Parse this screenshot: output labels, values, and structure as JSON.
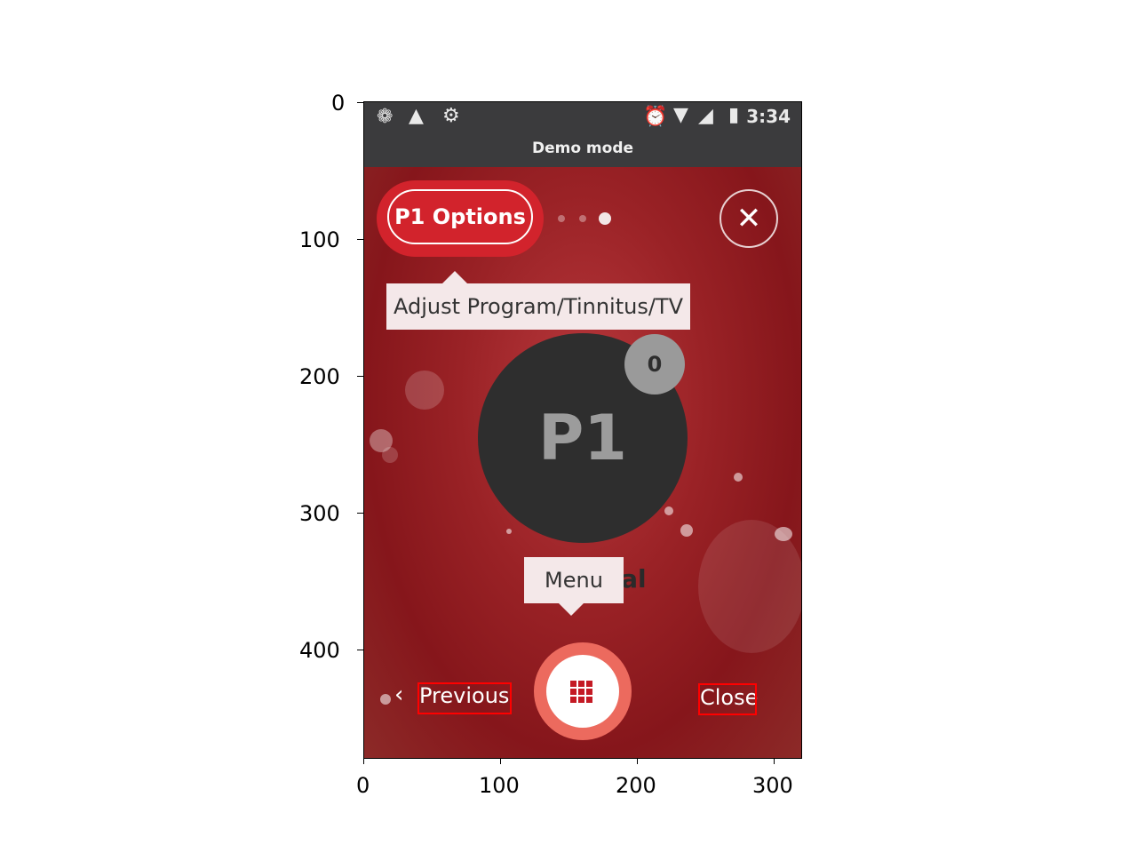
{
  "status_bar": {
    "time": "3:34",
    "left_icons": [
      "brain-icon",
      "warning-icon",
      "sync-icon"
    ],
    "right_icons": [
      "alarm-icon",
      "wifi-icon",
      "signal-icon",
      "battery-icon"
    ],
    "subtitle": "Demo mode"
  },
  "header": {
    "options_label": "P1 Options",
    "page_indicator": {
      "count": 3,
      "active_index": 2
    },
    "close_icon": "close-icon"
  },
  "tooltips": {
    "options_hint": "Adjust Program/Tinnitus/TV",
    "menu_hint": "Menu"
  },
  "program": {
    "name": "P1",
    "volume": "0",
    "background_label": "General"
  },
  "footer": {
    "previous_label": "Previous",
    "close_label": "Close",
    "menu_icon": "grid-icon"
  },
  "axes": {
    "x_ticks": [
      "0",
      "100",
      "200",
      "300"
    ],
    "y_ticks": [
      "0",
      "100",
      "200",
      "300",
      "400"
    ]
  },
  "colors": {
    "accent_red": "#d2232c",
    "status_bar": "#3b3b3d",
    "menu_ring": "#ec6a5e"
  }
}
